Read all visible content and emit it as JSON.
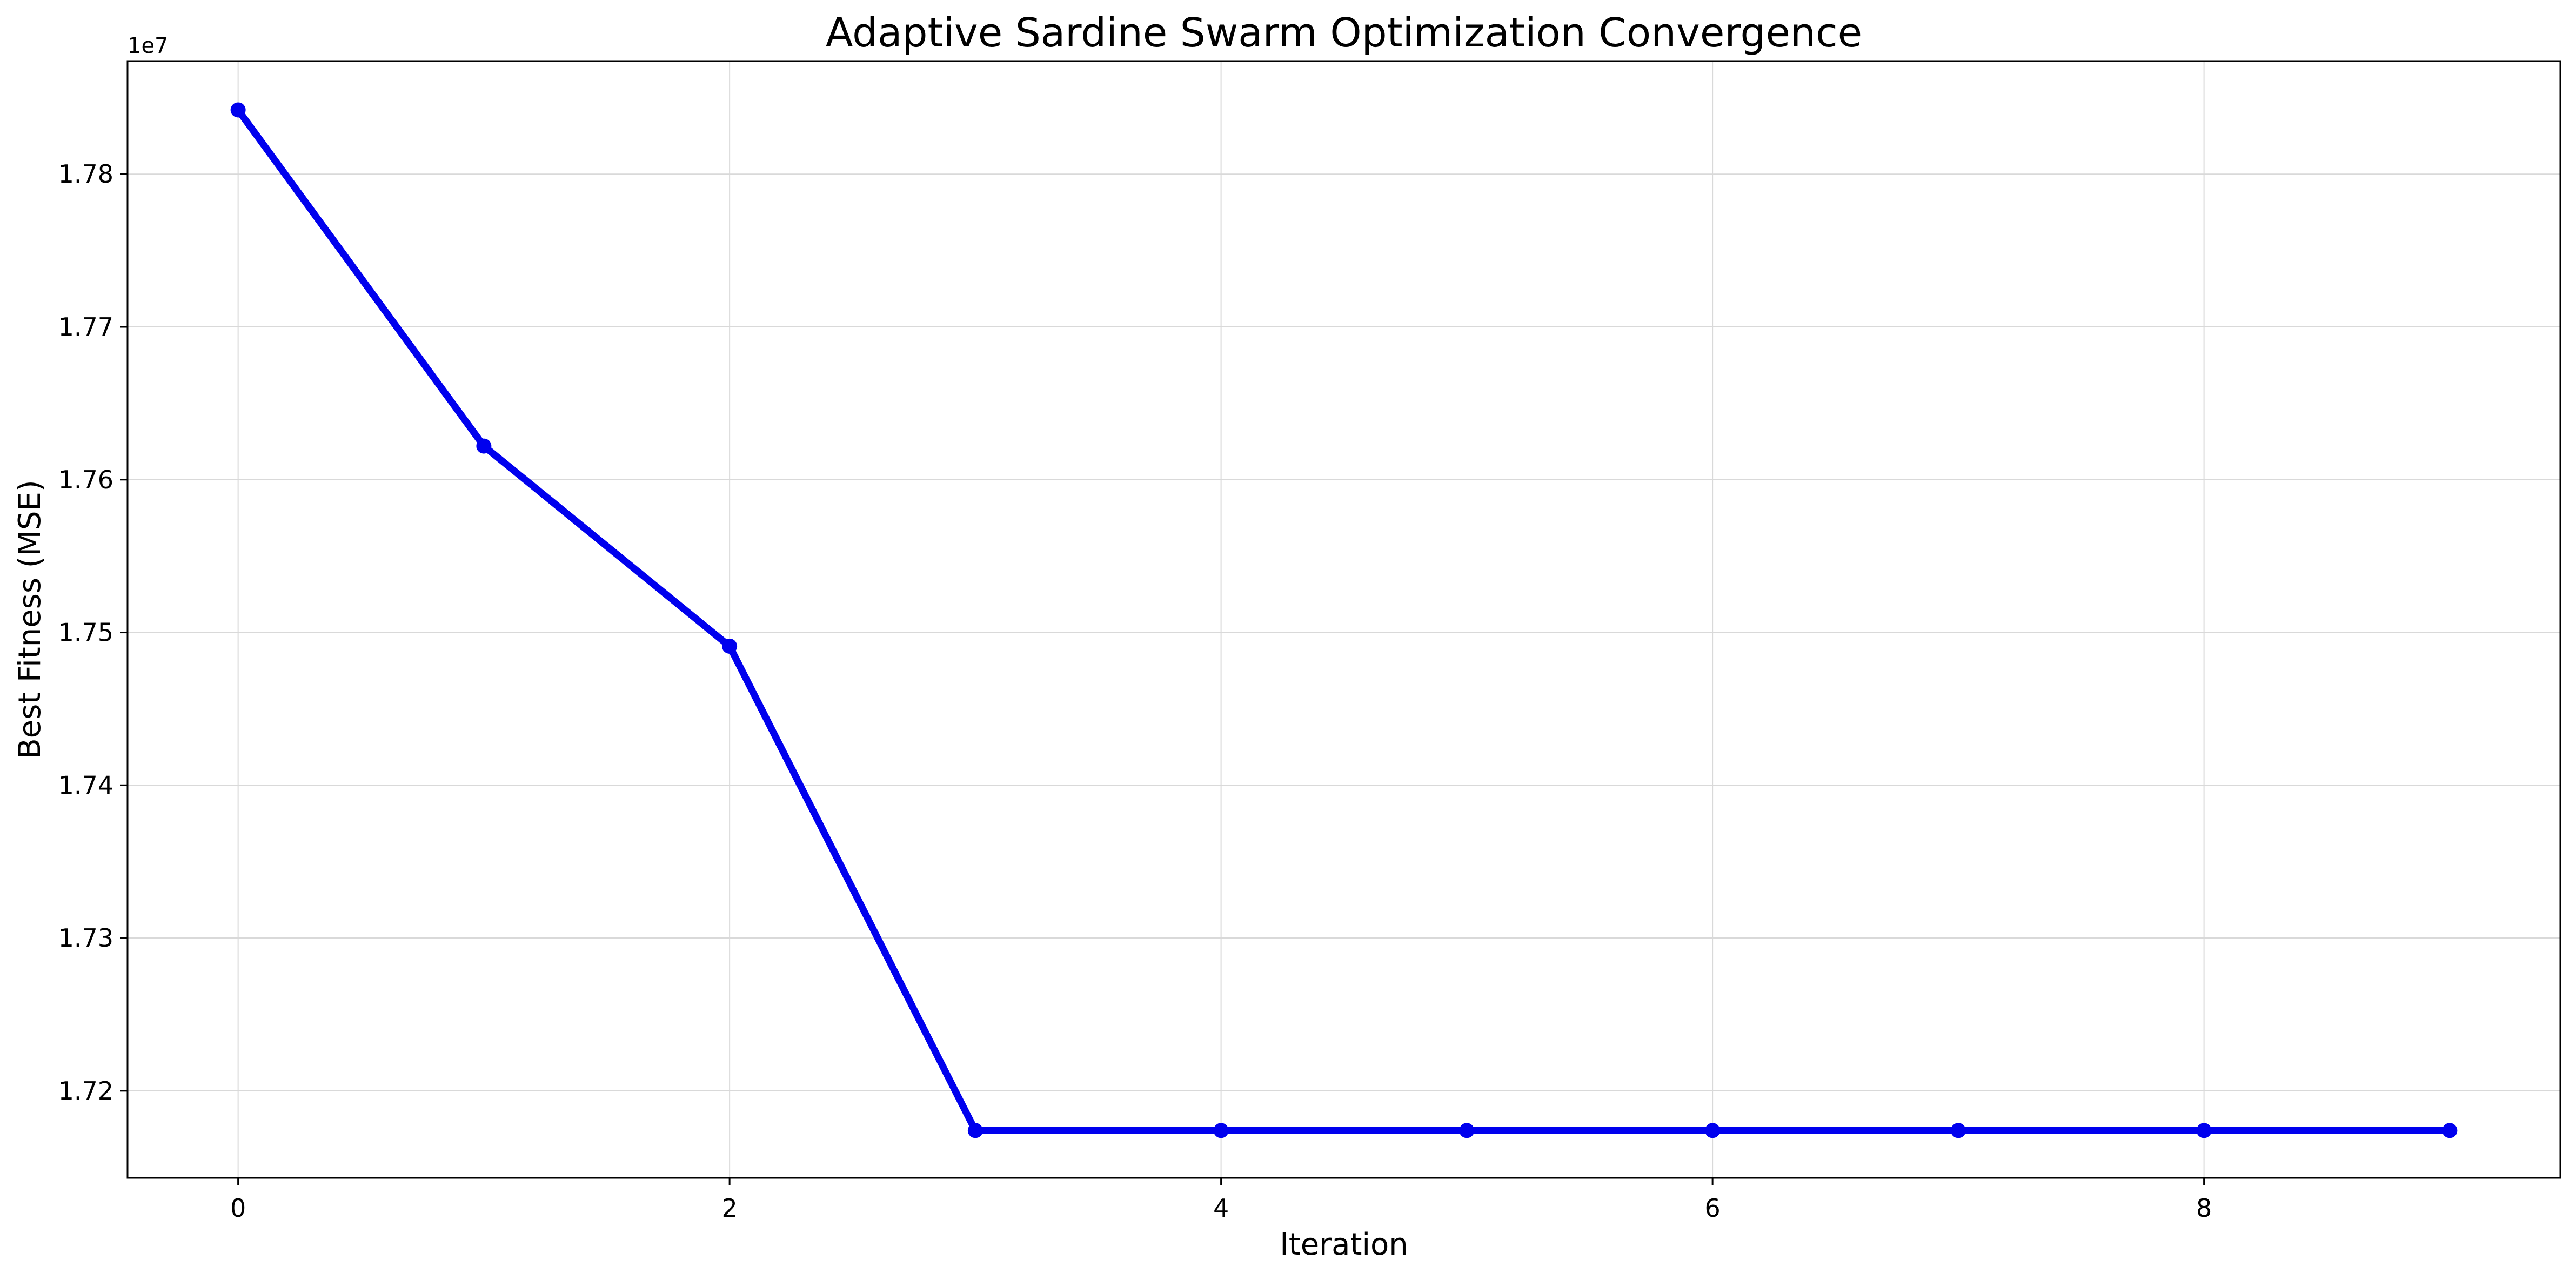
{
  "chart_data": {
    "type": "line",
    "title": "Adaptive Sardine Swarm Optimization Convergence",
    "xlabel": "Iteration",
    "ylabel": "Best Fitness (MSE)",
    "y_offset_label": "1e7",
    "xlim": [
      -0.45,
      9.45
    ],
    "ylim": [
      17143000,
      17874000
    ],
    "x_ticks": [
      0,
      2,
      4,
      6,
      8
    ],
    "x_tick_labels": [
      "0",
      "2",
      "4",
      "6",
      "8"
    ],
    "y_ticks": [
      17200000,
      17300000,
      17400000,
      17500000,
      17600000,
      17700000,
      17800000
    ],
    "y_tick_labels": [
      "1.72",
      "1.73",
      "1.74",
      "1.75",
      "1.76",
      "1.77",
      "1.78"
    ],
    "grid": true,
    "series": [
      {
        "color": "#0000ee",
        "marker": "circle",
        "x": [
          0,
          1,
          2,
          3,
          4,
          5,
          6,
          7,
          8,
          9
        ],
        "y": [
          17842000,
          17622000,
          17491000,
          17174000,
          17174000,
          17174000,
          17174000,
          17174000,
          17174000,
          17174000
        ]
      }
    ]
  }
}
